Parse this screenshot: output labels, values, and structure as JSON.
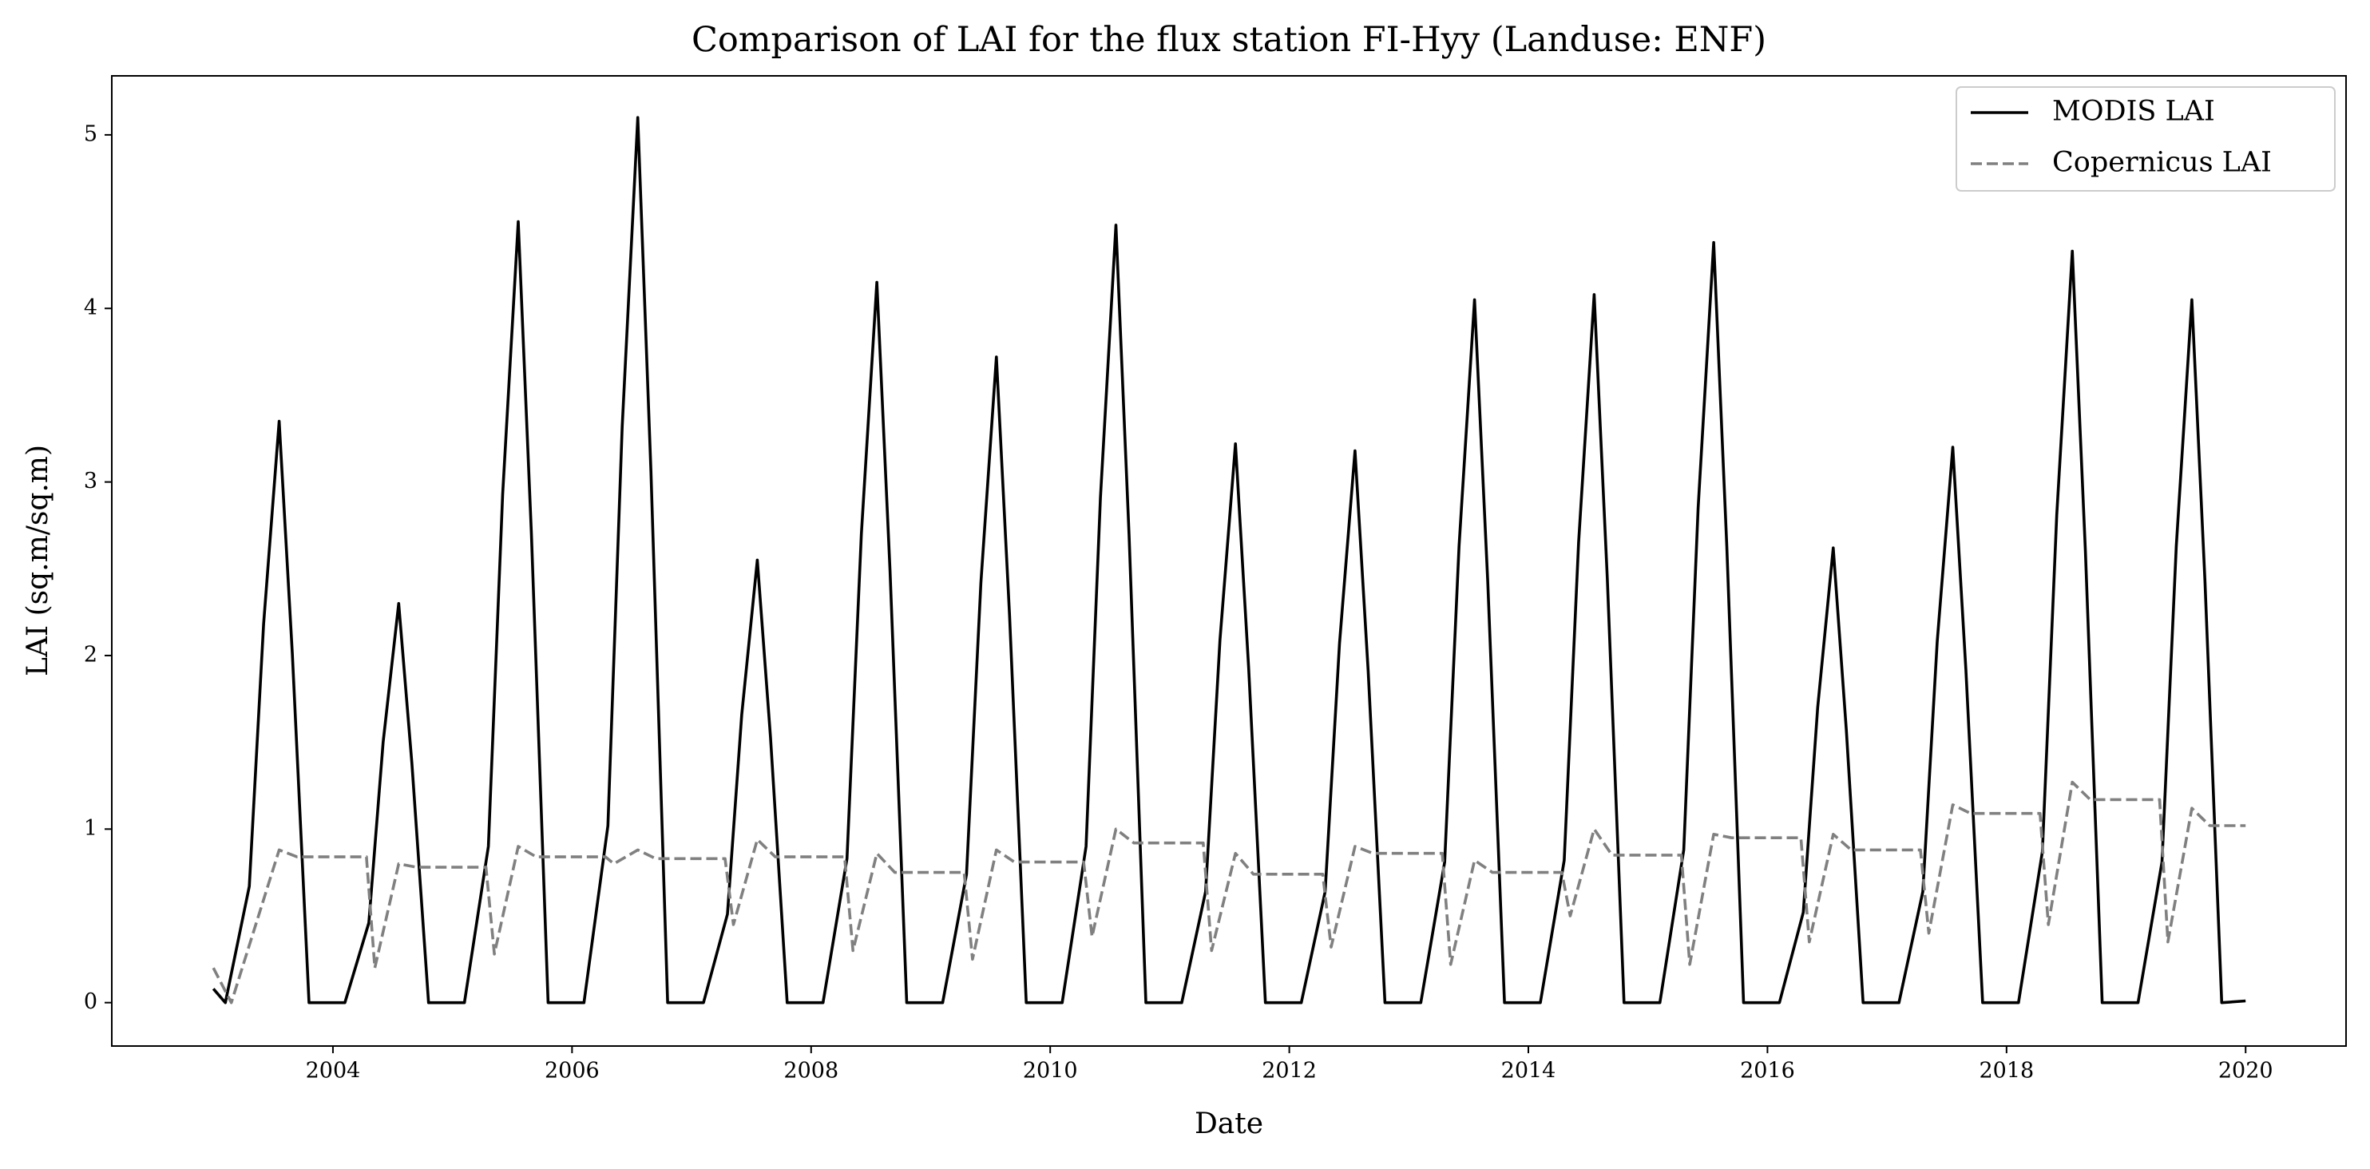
{
  "chart_data": {
    "type": "line",
    "title": "Comparison of LAI for the flux station FI-Hyy (Landuse: ENF)",
    "x_label": "Date",
    "y_label": "LAI (sq.m/sq.m)",
    "xlim": [
      2002.15,
      2020.84
    ],
    "ylim": [
      -0.25,
      5.34
    ],
    "xticks": [
      2004,
      2006,
      2008,
      2010,
      2012,
      2014,
      2016,
      2018,
      2020
    ],
    "yticks": [
      0,
      1,
      2,
      3,
      4,
      5
    ],
    "grid": false,
    "legend": "upper right",
    "series": [
      {
        "name": "MODIS LAI",
        "color": "#000000",
        "style": "solid",
        "x": [
          2003.0,
          2003.1,
          2003.3,
          2003.42,
          2003.55,
          2003.66,
          2003.8,
          2004.1,
          2004.3,
          2004.42,
          2004.55,
          2004.66,
          2004.8,
          2005.1,
          2005.3,
          2005.42,
          2005.55,
          2005.66,
          2005.8,
          2006.1,
          2006.3,
          2006.42,
          2006.55,
          2006.66,
          2006.8,
          2007.1,
          2007.3,
          2007.42,
          2007.55,
          2007.66,
          2007.8,
          2008.1,
          2008.3,
          2008.42,
          2008.55,
          2008.66,
          2008.8,
          2009.1,
          2009.3,
          2009.42,
          2009.55,
          2009.66,
          2009.8,
          2010.1,
          2010.3,
          2010.42,
          2010.55,
          2010.66,
          2010.8,
          2011.1,
          2011.3,
          2011.42,
          2011.55,
          2011.66,
          2011.8,
          2012.1,
          2012.3,
          2012.42,
          2012.55,
          2012.66,
          2012.8,
          2013.1,
          2013.3,
          2013.42,
          2013.55,
          2013.66,
          2013.8,
          2014.1,
          2014.3,
          2014.42,
          2014.55,
          2014.66,
          2014.8,
          2015.1,
          2015.3,
          2015.42,
          2015.55,
          2015.66,
          2015.8,
          2016.1,
          2016.3,
          2016.42,
          2016.55,
          2016.66,
          2016.8,
          2017.1,
          2017.3,
          2017.42,
          2017.55,
          2017.66,
          2017.8,
          2018.1,
          2018.3,
          2018.42,
          2018.55,
          2018.66,
          2018.8,
          2019.1,
          2019.3,
          2019.42,
          2019.55,
          2019.66,
          2019.8,
          2020.0
        ],
        "values": [
          0.08,
          0,
          0.67,
          2.18,
          3.35,
          2.01,
          0,
          0,
          0.46,
          1.5,
          2.3,
          1.38,
          0,
          0,
          0.9,
          2.93,
          4.5,
          2.7,
          0,
          0,
          1.02,
          3.32,
          5.1,
          3.06,
          0,
          0,
          0.51,
          1.66,
          2.55,
          1.53,
          0,
          0,
          0.83,
          2.7,
          4.15,
          2.49,
          0,
          0,
          0.74,
          2.42,
          3.72,
          2.23,
          0,
          0,
          0.9,
          2.91,
          4.48,
          2.69,
          0,
          0,
          0.64,
          2.09,
          3.22,
          1.93,
          0,
          0,
          0.64,
          2.07,
          3.18,
          1.91,
          0,
          0,
          0.81,
          2.63,
          4.05,
          2.43,
          0,
          0,
          0.82,
          2.65,
          4.08,
          2.45,
          0,
          0,
          0.88,
          2.85,
          4.38,
          2.63,
          0,
          0,
          0.52,
          1.7,
          2.62,
          1.57,
          0,
          0,
          0.64,
          2.08,
          3.2,
          1.92,
          0,
          0,
          0.87,
          2.81,
          4.33,
          2.6,
          0,
          0,
          0.81,
          2.63,
          4.05,
          2.43,
          0,
          0.01
        ]
      },
      {
        "name": "Copernicus LAI",
        "color": "#808080",
        "style": "dashed",
        "x": [
          2003.0,
          2003.15,
          2003.55,
          2003.7,
          2004.28,
          2004.35,
          2004.55,
          2004.7,
          2005.28,
          2005.35,
          2005.55,
          2005.7,
          2006.28,
          2006.35,
          2006.55,
          2006.7,
          2007.28,
          2007.35,
          2007.55,
          2007.7,
          2008.28,
          2008.35,
          2008.55,
          2008.7,
          2009.28,
          2009.35,
          2009.55,
          2009.7,
          2010.28,
          2010.35,
          2010.55,
          2010.7,
          2011.28,
          2011.35,
          2011.55,
          2011.7,
          2012.28,
          2012.35,
          2012.55,
          2012.7,
          2013.28,
          2013.35,
          2013.55,
          2013.7,
          2014.28,
          2014.35,
          2014.55,
          2014.7,
          2015.28,
          2015.35,
          2015.55,
          2015.7,
          2016.28,
          2016.35,
          2016.55,
          2016.7,
          2017.28,
          2017.35,
          2017.55,
          2017.7,
          2018.28,
          2018.35,
          2018.55,
          2018.7,
          2019.28,
          2019.35,
          2019.55,
          2019.7,
          2020.0
        ],
        "values": [
          0.2,
          0,
          0.88,
          0.84,
          0.84,
          0.2,
          0.8,
          0.78,
          0.78,
          0.28,
          0.9,
          0.84,
          0.84,
          0.8,
          0.88,
          0.83,
          0.83,
          0.45,
          0.94,
          0.84,
          0.84,
          0.3,
          0.86,
          0.75,
          0.75,
          0.25,
          0.88,
          0.81,
          0.81,
          0.38,
          1.0,
          0.92,
          0.92,
          0.3,
          0.86,
          0.74,
          0.74,
          0.32,
          0.9,
          0.86,
          0.86,
          0.22,
          0.82,
          0.75,
          0.75,
          0.5,
          1.0,
          0.85,
          0.85,
          0.22,
          0.97,
          0.95,
          0.95,
          0.35,
          0.97,
          0.88,
          0.88,
          0.4,
          1.14,
          1.09,
          1.09,
          0.45,
          1.27,
          1.17,
          1.17,
          0.35,
          1.12,
          1.02,
          1.02
        ]
      }
    ]
  }
}
